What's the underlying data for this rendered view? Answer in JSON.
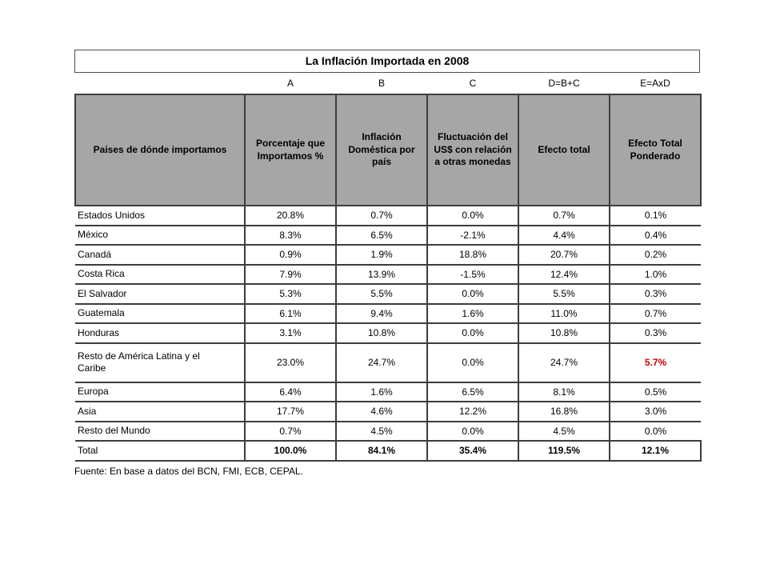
{
  "slide": {
    "title": "La Inflación Importada en 2008",
    "source_note": "Fuente: En base a datos del BCN, FMI, ECB, CEPAL."
  },
  "table": {
    "formula_labels": [
      "",
      "A",
      "B",
      "C",
      "D=B+C",
      "E=AxD"
    ],
    "column_headers": [
      "Paises de dónde importamos",
      "Porcentaje que Importamos %",
      "Inflación Doméstica por país",
      "Fluctuación del US$ con relación a otras monedas",
      "Efecto total",
      "Efecto Total Ponderado"
    ],
    "rows": [
      {
        "name": "Estados Unidos",
        "a": "20.8%",
        "b": "0.7%",
        "c": "0.0%",
        "d": "0.7%",
        "e": "0.1%"
      },
      {
        "name": "México",
        "a": "8.3%",
        "b": "6.5%",
        "c": "-2.1%",
        "d": "4.4%",
        "e": "0.4%"
      },
      {
        "name": "Canadá",
        "a": "0.9%",
        "b": "1.9%",
        "c": "18.8%",
        "d": "20.7%",
        "e": "0.2%"
      },
      {
        "name": "Costa Rica",
        "a": "7.9%",
        "b": "13.9%",
        "c": "-1.5%",
        "d": "12.4%",
        "e": "1.0%"
      },
      {
        "name": "El Salvador",
        "a": "5.3%",
        "b": "5.5%",
        "c": "0.0%",
        "d": "5.5%",
        "e": "0.3%"
      },
      {
        "name": "Guatemala",
        "a": "6.1%",
        "b": "9.4%",
        "c": "1.6%",
        "d": "11.0%",
        "e": "0.7%"
      },
      {
        "name": "Honduras",
        "a": "3.1%",
        "b": "10.8%",
        "c": "0.0%",
        "d": "10.8%",
        "e": "0.3%"
      },
      {
        "name": "Resto de América Latina y el Caribe",
        "a": "23.0%",
        "b": "24.7%",
        "c": "0.0%",
        "d": "24.7%",
        "e": "5.7%"
      },
      {
        "name": "Europa",
        "a": "6.4%",
        "b": "1.6%",
        "c": "6.5%",
        "d": "8.1%",
        "e": "0.5%"
      },
      {
        "name": "Asia",
        "a": "17.7%",
        "b": "4.6%",
        "c": "12.2%",
        "d": "16.8%",
        "e": "3.0%"
      },
      {
        "name": "Resto del Mundo",
        "a": "0.7%",
        "b": "4.5%",
        "c": "0.0%",
        "d": "4.5%",
        "e": "0.0%"
      }
    ],
    "total": {
      "name": "Total",
      "a": "100.0%",
      "b": "84.1%",
      "c": "35.4%",
      "d": "119.5%",
      "e": "12.1%"
    }
  },
  "colors": {
    "header_bg": "#a6a6a6",
    "grid_border": "#3d3d3d",
    "highlight_red": "#cc0000"
  }
}
